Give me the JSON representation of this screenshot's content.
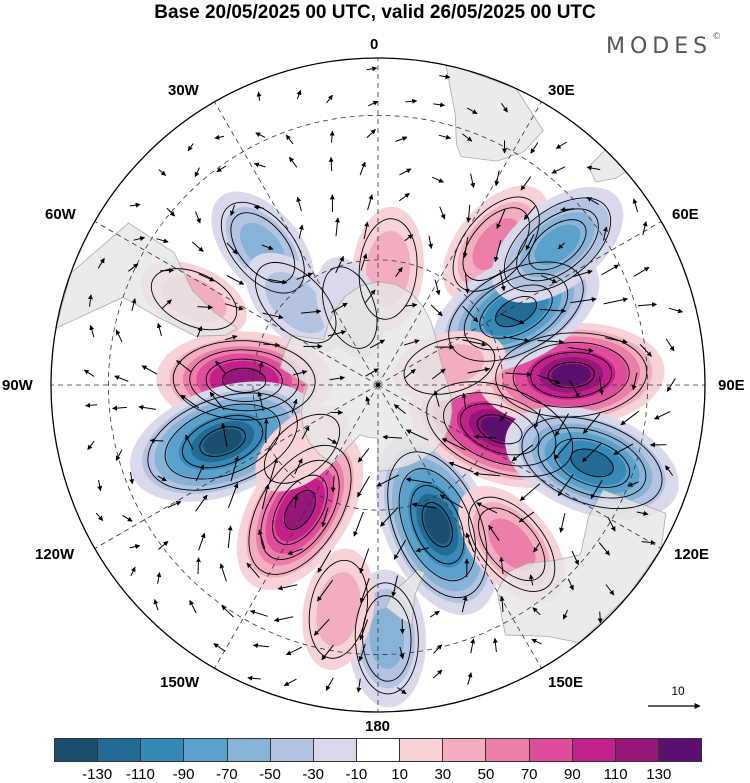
{
  "title": "Base 20/05/2025 00 UTC, valid 26/05/2025 00 UTC",
  "brand": "MODES",
  "brand_mark": "©",
  "longitude_labels": {
    "lon_0": "0",
    "lon_30e": "30E",
    "lon_60e": "60E",
    "lon_90e": "90E",
    "lon_120e": "120E",
    "lon_150e": "150E",
    "lon_180": "180",
    "lon_150w": "150W",
    "lon_120w": "120W",
    "lon_90w": "90W",
    "lon_60w": "60W",
    "lon_30w": "30W"
  },
  "vector_reference": {
    "label": "10"
  },
  "colorbar": {
    "colors": [
      "#1c4e6e",
      "#236a94",
      "#3789b8",
      "#5aa1cc",
      "#88b3d6",
      "#b3c3e1",
      "#dad9ec",
      "#ffffff",
      "#f7d3d7",
      "#f2aebf",
      "#ec7eaa",
      "#df4c9c",
      "#c2218b",
      "#96167a",
      "#5b0f6f"
    ],
    "ticks": [
      "-130",
      "-110",
      "-90",
      "-70",
      "-50",
      "-30",
      "-10",
      "10",
      "30",
      "50",
      "70",
      "90",
      "110",
      "130"
    ]
  },
  "palette": {
    "land": "#e6e6e6",
    "coast": "#aaaaaa",
    "grid": "#333333",
    "boundary": "#000000"
  },
  "map_features": {
    "projection": "south polar stereographic",
    "field": "shaded anomaly with flow vectors and contours",
    "centers": [
      {
        "lon": 40,
        "lat": -47,
        "value": 55
      },
      {
        "lon": 5,
        "lat": -62,
        "value": 38
      },
      {
        "lon": -40,
        "lat": -48,
        "value": -48
      },
      {
        "lon": -65,
        "lat": -43,
        "value": 22
      },
      {
        "lon": -45,
        "lat": -62,
        "value": -35
      },
      {
        "lon": -88,
        "lat": -58,
        "value": 105
      },
      {
        "lon": -110,
        "lat": -51,
        "value": -128
      },
      {
        "lon": -148,
        "lat": -55,
        "value": 108
      },
      {
        "lon": 157,
        "lat": -54,
        "value": -125
      },
      {
        "lon": 110,
        "lat": -59,
        "value": 122
      },
      {
        "lon": 87,
        "lat": -45,
        "value": 120
      },
      {
        "lon": 62,
        "lat": -53,
        "value": -112
      },
      {
        "lon": 52,
        "lat": -38,
        "value": -75
      },
      {
        "lon": 110,
        "lat": -38,
        "value": -112
      },
      {
        "lon": 140,
        "lat": -42,
        "value": 55
      },
      {
        "lon": 178,
        "lat": -33,
        "value": -55
      },
      {
        "lon": -170,
        "lat": -38,
        "value": 35
      },
      {
        "lon": -130,
        "lat": -66,
        "value": 18
      },
      {
        "lon": -20,
        "lat": -70,
        "value": -12
      },
      {
        "lon": 75,
        "lat": -72,
        "value": 25
      }
    ]
  }
}
